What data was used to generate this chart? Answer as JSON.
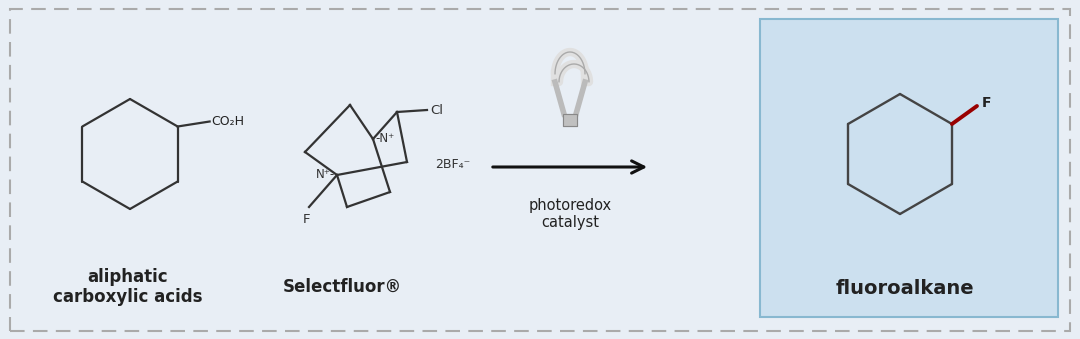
{
  "bg_color": "#e8eef5",
  "outer_border_color": "#aaaaaa",
  "highlight_box_color": "#cce0ef",
  "highlight_box_edge": "#88b8d0",
  "text_color": "#222222",
  "label1": "aliphatic\ncarboxylic acids",
  "label2": "Selectfluor®",
  "label3": "photoredox\ncatalyst",
  "label4": "fluoroalkane",
  "arrow_color": "#111111",
  "bond_color": "#333333",
  "F_bond_color": "#990000",
  "label_fontsize": 12,
  "label2_fontsize": 12,
  "label4_fontsize": 14
}
